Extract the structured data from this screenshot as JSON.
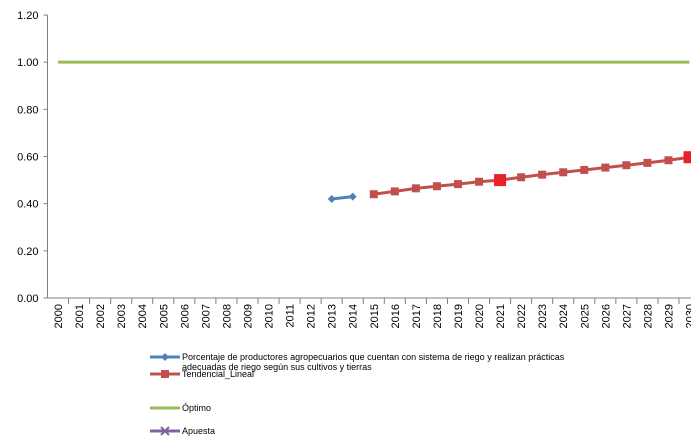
{
  "chart_data": {
    "type": "line",
    "categories": [
      "2000",
      "2001",
      "2002",
      "2003",
      "2004",
      "2005",
      "2006",
      "2007",
      "2008",
      "2009",
      "2010",
      "2011",
      "2012",
      "2013",
      "2014",
      "2015",
      "2016",
      "2017",
      "2018",
      "2019",
      "2020",
      "2021",
      "2022",
      "2023",
      "2024",
      "2025",
      "2026",
      "2027",
      "2028",
      "2029",
      "2030"
    ],
    "series": [
      {
        "name": "Porcentaje de productores agropecuarios que cuentan con sistema de riego y realizan prácticas adecuadas de riego según sus cultivos y tierras",
        "color": "#4f81bd",
        "marker": "diamond",
        "values": [
          null,
          null,
          null,
          null,
          null,
          null,
          null,
          null,
          null,
          null,
          null,
          null,
          null,
          0.42,
          0.43,
          null,
          null,
          null,
          null,
          null,
          null,
          null,
          null,
          null,
          null,
          null,
          null,
          null,
          null,
          null,
          null
        ]
      },
      {
        "name": "Tendencial_Lineal",
        "color": "#c0504d",
        "marker": "square",
        "highlight_color": "#e8202a",
        "highlight_indices": [
          21,
          30
        ],
        "values": [
          null,
          null,
          null,
          null,
          null,
          null,
          null,
          null,
          null,
          null,
          null,
          null,
          null,
          null,
          null,
          0.44,
          0.452,
          0.465,
          0.474,
          0.483,
          0.493,
          0.5,
          0.512,
          0.523,
          0.533,
          0.543,
          0.553,
          0.563,
          0.573,
          0.584,
          0.597
        ]
      },
      {
        "name": "Óptimo",
        "color": "#9bbb59",
        "marker": "none",
        "values": [
          1,
          1,
          1,
          1,
          1,
          1,
          1,
          1,
          1,
          1,
          1,
          1,
          1,
          1,
          1,
          1,
          1,
          1,
          1,
          1,
          1,
          1,
          1,
          1,
          1,
          1,
          1,
          1,
          1,
          1,
          1
        ]
      },
      {
        "name": "Apuesta",
        "color": "#8064a2",
        "marker": "x",
        "values": [
          null,
          null,
          null,
          null,
          null,
          null,
          null,
          null,
          null,
          null,
          null,
          null,
          null,
          null,
          null,
          null,
          null,
          null,
          null,
          null,
          null,
          null,
          null,
          null,
          null,
          null,
          null,
          null,
          null,
          null,
          null
        ]
      }
    ],
    "ylim": [
      0,
      1.2
    ],
    "yticks": [
      {
        "value": 0,
        "label": "0.00"
      },
      {
        "value": 0.2,
        "label": "0.20"
      },
      {
        "value": 0.4,
        "label": "0.40"
      },
      {
        "value": 0.6,
        "label": "0.60"
      },
      {
        "value": 0.8,
        "label": "0.80"
      },
      {
        "value": 1,
        "label": "1.00"
      },
      {
        "value": 1.2,
        "label": "1.20"
      }
    ],
    "grid": false
  }
}
